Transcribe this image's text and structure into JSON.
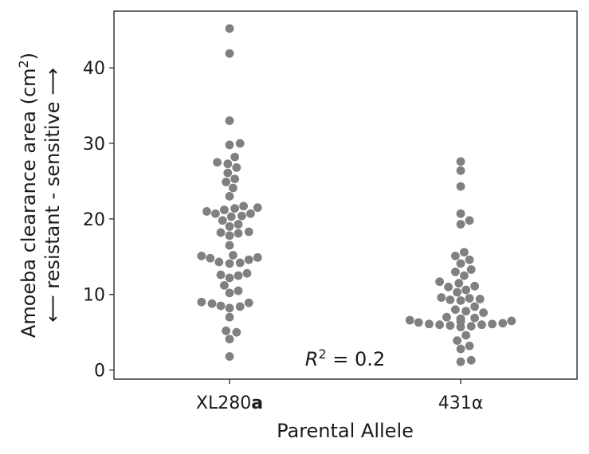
{
  "chart_data": {
    "type": "scatter",
    "subtype": "swarm",
    "xlabel": "Parental Allele",
    "ylabel_line1": "Amoeba clearance area (cm",
    "ylabel_sup": "2",
    "ylabel_line1_end": ")",
    "ylabel_line2": "⟵ resistant - sensitive ⟶",
    "ylim": [
      -1.2,
      47.5
    ],
    "yticks": [
      0,
      10,
      20,
      30,
      40
    ],
    "grid": false,
    "marker_color": "#808080",
    "categories": [
      {
        "label": "XL280",
        "label_bold_suffix": "a"
      },
      {
        "label": "431α",
        "label_bold_suffix": ""
      }
    ],
    "series": [
      {
        "values": [
          45.2,
          41.9,
          33.0,
          30.0,
          29.8,
          28.2,
          27.5,
          27.3,
          26.8,
          26.1,
          25.3,
          24.9,
          24.1,
          23.0,
          21.7,
          21.5,
          21.4,
          21.2,
          21.0,
          20.7,
          20.7,
          20.4,
          20.3,
          19.8,
          19.3,
          19.0,
          18.3,
          18.2,
          18.1,
          17.8,
          16.5,
          15.2,
          15.1,
          14.9,
          14.8,
          14.6,
          14.3,
          14.2,
          14.1,
          12.8,
          12.6,
          12.5,
          12.2,
          11.2,
          10.5,
          10.2,
          9.0,
          8.9,
          8.8,
          8.5,
          8.4,
          8.2,
          7.0,
          5.2,
          5.0,
          4.1,
          1.8
        ]
      },
      {
        "values": [
          27.6,
          26.4,
          24.3,
          20.7,
          19.8,
          19.3,
          15.6,
          15.1,
          14.6,
          14.1,
          13.3,
          13.0,
          12.5,
          11.7,
          11.5,
          11.1,
          11.0,
          10.6,
          10.3,
          9.6,
          9.5,
          9.4,
          9.3,
          9.2,
          8.4,
          8.0,
          7.8,
          7.6,
          7.0,
          6.9,
          6.8,
          6.7,
          6.6,
          6.5,
          6.4,
          6.3,
          6.2,
          6.1,
          6.1,
          6.0,
          6.0,
          5.9,
          5.8,
          5.7,
          4.6,
          3.9,
          3.2,
          2.8,
          1.3,
          1.1
        ]
      }
    ],
    "annotation": {
      "base": "R",
      "sup": "2",
      "rest": " = 0.2",
      "x": 0.5,
      "y": 0.6
    }
  }
}
